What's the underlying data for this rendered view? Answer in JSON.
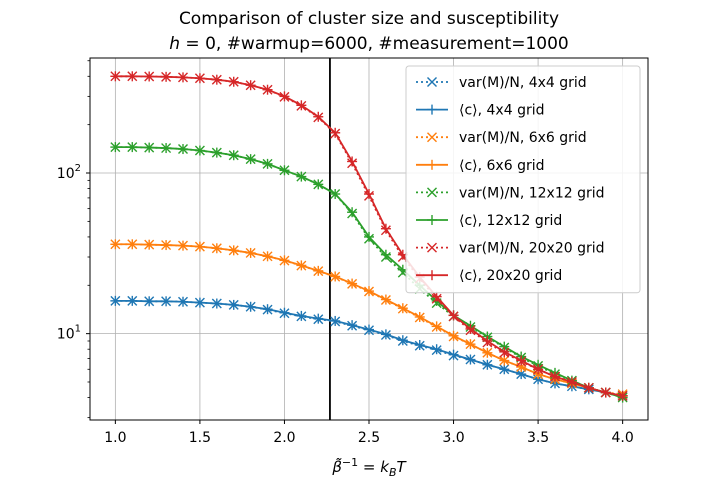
{
  "chart_data": {
    "type": "line",
    "title": "Comparison of cluster size and susceptibility",
    "subtitle": "h = 0, #warmup=6000, #measurement=1000",
    "xlabel": "β̃⁻¹ = k_B T",
    "ylabel": "",
    "xlim": [
      0.85,
      4.15
    ],
    "ylim": [
      2.9,
      520
    ],
    "yscale": "log",
    "grid": true,
    "legend_position": "upper right",
    "vertical_line_x": 2.269,
    "x_ticks": [
      "1.0",
      "1.5",
      "2.0",
      "2.5",
      "3.0",
      "3.5",
      "4.0"
    ],
    "y_ticks": [
      "10^1",
      "10^2"
    ],
    "x": [
      1.0,
      1.1,
      1.2,
      1.3,
      1.4,
      1.5,
      1.6,
      1.7,
      1.8,
      1.9,
      2.0,
      2.1,
      2.2,
      2.3,
      2.4,
      2.5,
      2.6,
      2.7,
      2.8,
      2.9,
      3.0,
      3.1,
      3.2,
      3.3,
      3.4,
      3.5,
      3.6,
      3.7,
      3.8,
      3.9,
      4.0
    ],
    "series": [
      {
        "name": "var(M)/N, 4x4 grid",
        "style": "dotted-x",
        "color": "#1f77b4",
        "values": [
          16.0,
          16.0,
          15.9,
          15.9,
          15.8,
          15.6,
          15.4,
          15.1,
          14.7,
          14.1,
          13.4,
          12.8,
          12.3,
          11.9,
          11.2,
          10.5,
          9.8,
          9.0,
          8.4,
          7.9,
          7.3,
          6.9,
          6.4,
          6.0,
          5.6,
          5.2,
          4.9,
          4.7,
          4.5,
          4.3,
          4.1
        ]
      },
      {
        "name": "⟨c⟩, 4x4 grid",
        "style": "solid-plus",
        "color": "#1f77b4",
        "values": [
          16.0,
          16.0,
          15.9,
          15.9,
          15.8,
          15.6,
          15.4,
          15.1,
          14.7,
          14.2,
          13.5,
          12.9,
          12.4,
          12.0,
          11.3,
          10.6,
          9.9,
          9.1,
          8.5,
          8.0,
          7.4,
          6.9,
          6.4,
          6.0,
          5.6,
          5.2,
          4.9,
          4.7,
          4.5,
          4.3,
          4.1
        ]
      },
      {
        "name": "var(M)/N, 6x6 grid",
        "style": "dotted-x",
        "color": "#ff7f0e",
        "values": [
          36.0,
          36.0,
          35.8,
          35.6,
          35.3,
          34.8,
          34.0,
          33.0,
          31.8,
          30.3,
          28.5,
          26.5,
          24.5,
          22.6,
          20.4,
          18.3,
          16.2,
          14.3,
          12.6,
          11.0,
          9.6,
          8.6,
          7.6,
          6.8,
          6.2,
          5.6,
          5.2,
          4.9,
          4.6,
          4.3,
          4.2
        ]
      },
      {
        "name": "⟨c⟩, 6x6 grid",
        "style": "solid-plus",
        "color": "#ff7f0e",
        "values": [
          36.0,
          36.0,
          35.8,
          35.6,
          35.3,
          34.8,
          34.0,
          33.0,
          31.8,
          30.3,
          28.6,
          26.6,
          24.6,
          22.7,
          20.5,
          18.4,
          16.3,
          14.4,
          12.7,
          11.1,
          9.7,
          8.6,
          7.6,
          6.8,
          6.2,
          5.6,
          5.2,
          4.9,
          4.6,
          4.3,
          4.1
        ]
      },
      {
        "name": "var(M)/N, 12x12 grid",
        "style": "dotted-x",
        "color": "#2ca02c",
        "values": [
          145,
          145,
          144,
          143,
          141,
          138,
          134,
          129,
          122,
          114,
          104,
          95,
          85,
          74,
          56,
          39,
          30,
          24,
          19,
          15.5,
          12.8,
          11.0,
          9.5,
          8.2,
          7.1,
          6.3,
          5.6,
          5.1,
          4.6,
          4.3,
          4.0
        ]
      },
      {
        "name": "⟨c⟩, 12x12 grid",
        "style": "solid-plus",
        "color": "#2ca02c",
        "values": [
          145,
          145,
          144,
          143,
          141,
          138,
          134,
          129,
          122,
          114,
          104,
          95,
          85,
          74,
          57,
          40,
          31,
          25,
          20,
          16,
          13,
          11.2,
          9.6,
          8.3,
          7.2,
          6.4,
          5.7,
          5.1,
          4.6,
          4.3,
          4.0
        ]
      },
      {
        "name": "var(M)/N, 20x20 grid",
        "style": "dotted-x",
        "color": "#d62728",
        "values": [
          400,
          400,
          399,
          397,
          394,
          389,
          381,
          370,
          352,
          330,
          298,
          262,
          222,
          176,
          115,
          72,
          44,
          30,
          22,
          16.5,
          12.8,
          10.5,
          8.8,
          7.6,
          6.7,
          6.0,
          5.4,
          5.0,
          4.6,
          4.3,
          4.1
        ]
      },
      {
        "name": "⟨c⟩, 20x20 grid",
        "style": "solid-plus",
        "color": "#d62728",
        "values": [
          400,
          400,
          399,
          397,
          394,
          389,
          381,
          370,
          352,
          330,
          300,
          264,
          224,
          178,
          118,
          74,
          45,
          31,
          22.5,
          17,
          13,
          10.7,
          9.0,
          7.7,
          6.8,
          6.0,
          5.4,
          5.0,
          4.6,
          4.3,
          4.1
        ]
      }
    ]
  }
}
